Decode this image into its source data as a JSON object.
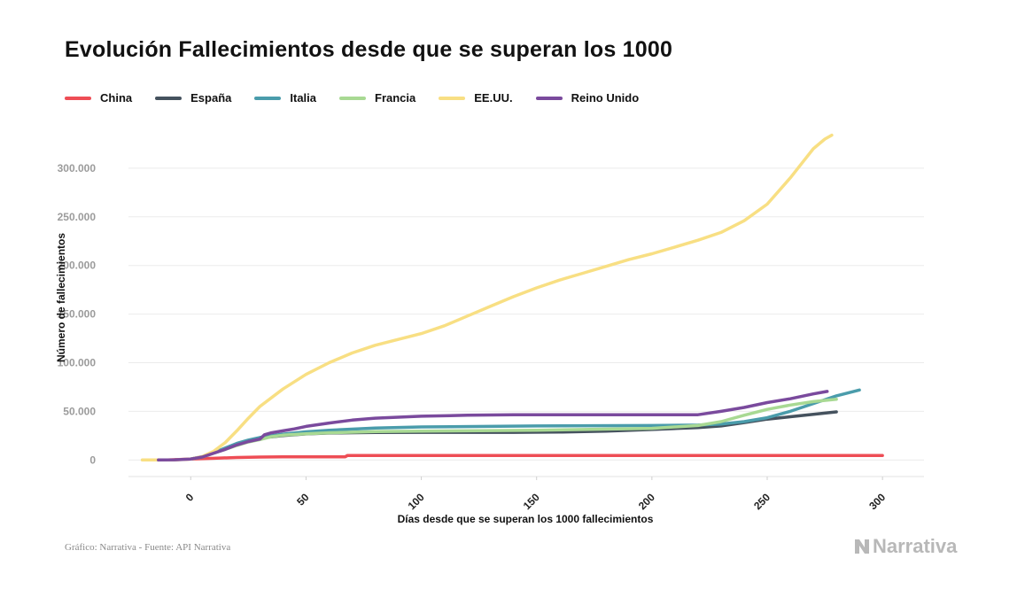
{
  "title": "Evolución Fallecimientos desde que se superan los 1000",
  "source": "Gráfico: Narrativa - Fuente: API Narrativa",
  "brand": "Narrativa",
  "chart_data": {
    "type": "line",
    "title": "Evolución Fallecimientos desde que se superan los 1000",
    "xlabel": "Días desde que se superan los 1000 fallecimientos",
    "ylabel": "Número de fallecimientos",
    "xlim": [
      -27,
      318
    ],
    "ylim": [
      -17000,
      350000
    ],
    "xticks": [
      0,
      50,
      100,
      150,
      200,
      250,
      300
    ],
    "xtick_labels": [
      "0",
      "50",
      "100",
      "150",
      "200",
      "250",
      "300"
    ],
    "yticks": [
      0,
      50000,
      100000,
      150000,
      200000,
      250000,
      300000
    ],
    "ytick_labels": [
      "0",
      "50.000",
      "100.000",
      "150.000",
      "200.000",
      "250.000",
      "300.000"
    ],
    "grid": true,
    "legend_position": "top-left",
    "series": [
      {
        "name": "China",
        "color": "#ee4d55",
        "x": [
          -10,
          0,
          10,
          20,
          30,
          40,
          50,
          60,
          67,
          68,
          100,
          150,
          200,
          250,
          300
        ],
        "y": [
          0,
          900,
          1800,
          2600,
          3000,
          3200,
          3250,
          3300,
          3330,
          4630,
          4634,
          4634,
          4634,
          4634,
          4634
        ]
      },
      {
        "name": "España",
        "color": "#45525e",
        "x": [
          0,
          5,
          10,
          15,
          20,
          25,
          30,
          40,
          50,
          60,
          80,
          100,
          140,
          160,
          180,
          200,
          220,
          230,
          240,
          250,
          260,
          270,
          280
        ],
        "y": [
          1000,
          3400,
          7300,
          11700,
          16600,
          20000,
          22500,
          25100,
          26800,
          27700,
          28300,
          28400,
          28400,
          28700,
          29600,
          31400,
          33400,
          35000,
          38500,
          42000,
          44500,
          47000,
          49500
        ]
      },
      {
        "name": "Italia",
        "color": "#4a9cab",
        "x": [
          0,
          5,
          10,
          15,
          20,
          25,
          30,
          40,
          50,
          60,
          80,
          100,
          150,
          200,
          220,
          230,
          240,
          250,
          260,
          270,
          280,
          290
        ],
        "y": [
          1000,
          3400,
          7500,
          12400,
          17100,
          20500,
          23200,
          26600,
          29000,
          30600,
          32800,
          34000,
          35000,
          35500,
          35900,
          37000,
          39500,
          43500,
          50000,
          58000,
          66000,
          72000
        ]
      },
      {
        "name": "Francia",
        "color": "#a8d993",
        "x": [
          0,
          5,
          10,
          15,
          20,
          25,
          30,
          35,
          40,
          50,
          60,
          80,
          100,
          150,
          200,
          220,
          230,
          240,
          250,
          260,
          270,
          280
        ],
        "y": [
          1000,
          3000,
          7000,
          11000,
          15000,
          18500,
          21000,
          24000,
          25500,
          27000,
          28000,
          29200,
          29700,
          30500,
          32500,
          35500,
          39500,
          46000,
          52000,
          56500,
          60000,
          62500
        ]
      },
      {
        "name": "EE.UU.",
        "color": "#f8df83",
        "x": [
          -21,
          -14,
          -7,
          0,
          5,
          10,
          15,
          20,
          25,
          30,
          40,
          50,
          60,
          70,
          80,
          90,
          100,
          110,
          120,
          130,
          140,
          150,
          160,
          170,
          180,
          190,
          200,
          210,
          220,
          230,
          240,
          250,
          260,
          265,
          270,
          275,
          278
        ],
        "y": [
          0,
          0,
          150,
          1000,
          3500,
          9000,
          18000,
          30000,
          43000,
          55000,
          73000,
          88000,
          100000,
          110000,
          118000,
          124000,
          130000,
          138000,
          148000,
          158000,
          168000,
          177000,
          185000,
          192000,
          199000,
          206000,
          212000,
          219000,
          226000,
          234000,
          246000,
          263000,
          290000,
          305000,
          320000,
          330000,
          334000
        ]
      },
      {
        "name": "Reino Unido",
        "color": "#7a4a9d",
        "x": [
          -14,
          -7,
          0,
          5,
          10,
          15,
          20,
          25,
          30,
          32,
          35,
          40,
          45,
          50,
          60,
          70,
          80,
          100,
          120,
          140,
          160,
          180,
          200,
          220,
          230,
          240,
          250,
          260,
          270,
          276
        ],
        "y": [
          0,
          200,
          1000,
          3000,
          7000,
          11000,
          15500,
          19000,
          21500,
          26000,
          28000,
          30000,
          32000,
          34500,
          38000,
          41000,
          43000,
          45000,
          46000,
          46500,
          46500,
          46500,
          46500,
          46600,
          50000,
          54000,
          59000,
          63000,
          68000,
          70500
        ]
      }
    ]
  }
}
